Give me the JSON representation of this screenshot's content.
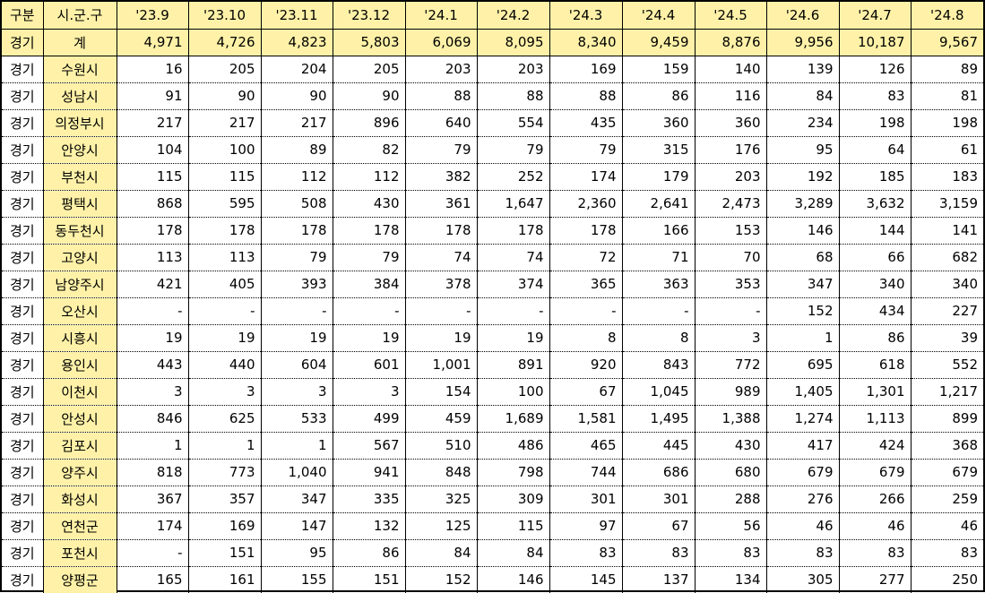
{
  "table": {
    "headers": [
      "구분",
      "시.군.구",
      "'23.9",
      "'23.10",
      "'23.11",
      "'23.12",
      "'24.1",
      "'24.2",
      "'24.3",
      "'24.4",
      "'24.5",
      "'24.6",
      "'24.7",
      "'24.8"
    ],
    "rows": [
      [
        "경기",
        "계",
        "4,971",
        "4,726",
        "4,823",
        "5,803",
        "6,069",
        "8,095",
        "8,340",
        "9,459",
        "8,876",
        "9,956",
        "10,187",
        "9,567"
      ],
      [
        "경기",
        "수원시",
        "16",
        "205",
        "204",
        "205",
        "203",
        "203",
        "169",
        "159",
        "140",
        "139",
        "126",
        "89"
      ],
      [
        "경기",
        "성남시",
        "91",
        "90",
        "90",
        "90",
        "88",
        "88",
        "88",
        "86",
        "116",
        "84",
        "83",
        "81"
      ],
      [
        "경기",
        "의정부시",
        "217",
        "217",
        "217",
        "896",
        "640",
        "554",
        "435",
        "360",
        "360",
        "234",
        "198",
        "198"
      ],
      [
        "경기",
        "안양시",
        "104",
        "100",
        "89",
        "82",
        "79",
        "79",
        "79",
        "315",
        "176",
        "95",
        "64",
        "61"
      ],
      [
        "경기",
        "부천시",
        "115",
        "115",
        "112",
        "112",
        "382",
        "252",
        "174",
        "179",
        "203",
        "192",
        "185",
        "183"
      ],
      [
        "경기",
        "평택시",
        "868",
        "595",
        "508",
        "430",
        "361",
        "1,647",
        "2,360",
        "2,641",
        "2,473",
        "3,289",
        "3,632",
        "3,159"
      ],
      [
        "경기",
        "동두천시",
        "178",
        "178",
        "178",
        "178",
        "178",
        "178",
        "178",
        "166",
        "153",
        "146",
        "144",
        "141"
      ],
      [
        "경기",
        "고양시",
        "113",
        "113",
        "79",
        "79",
        "74",
        "74",
        "72",
        "71",
        "70",
        "68",
        "66",
        "682"
      ],
      [
        "경기",
        "남양주시",
        "421",
        "405",
        "393",
        "384",
        "378",
        "374",
        "365",
        "363",
        "353",
        "347",
        "340",
        "340"
      ],
      [
        "경기",
        "오산시",
        "-",
        "-",
        "-",
        "-",
        "-",
        "-",
        "-",
        "-",
        "-",
        "152",
        "434",
        "227"
      ],
      [
        "경기",
        "시흥시",
        "19",
        "19",
        "19",
        "19",
        "19",
        "19",
        "8",
        "8",
        "3",
        "1",
        "86",
        "39"
      ],
      [
        "경기",
        "용인시",
        "443",
        "440",
        "604",
        "601",
        "1,001",
        "891",
        "920",
        "843",
        "772",
        "695",
        "618",
        "552"
      ],
      [
        "경기",
        "이천시",
        "3",
        "3",
        "3",
        "3",
        "154",
        "100",
        "67",
        "1,045",
        "989",
        "1,405",
        "1,301",
        "1,217"
      ],
      [
        "경기",
        "안성시",
        "846",
        "625",
        "533",
        "499",
        "459",
        "1,689",
        "1,581",
        "1,495",
        "1,388",
        "1,274",
        "1,113",
        "899"
      ],
      [
        "경기",
        "김포시",
        "1",
        "1",
        "1",
        "567",
        "510",
        "486",
        "465",
        "445",
        "430",
        "417",
        "424",
        "368"
      ],
      [
        "경기",
        "양주시",
        "818",
        "773",
        "1,040",
        "941",
        "848",
        "798",
        "744",
        "686",
        "680",
        "679",
        "679",
        "679"
      ],
      [
        "경기",
        "화성시",
        "367",
        "357",
        "347",
        "335",
        "325",
        "309",
        "301",
        "301",
        "288",
        "276",
        "266",
        "259"
      ],
      [
        "경기",
        "연천군",
        "174",
        "169",
        "147",
        "132",
        "125",
        "115",
        "97",
        "67",
        "56",
        "46",
        "46",
        "46"
      ],
      [
        "경기",
        "포천시",
        "-",
        "151",
        "95",
        "86",
        "84",
        "84",
        "83",
        "83",
        "83",
        "83",
        "83",
        "83"
      ],
      [
        "경기",
        "양평군",
        "165",
        "161",
        "155",
        "151",
        "152",
        "146",
        "145",
        "137",
        "134",
        "305",
        "277",
        "250"
      ]
    ]
  },
  "colors": {
    "header_fill": "#fff2a8",
    "grid": "#000000"
  }
}
